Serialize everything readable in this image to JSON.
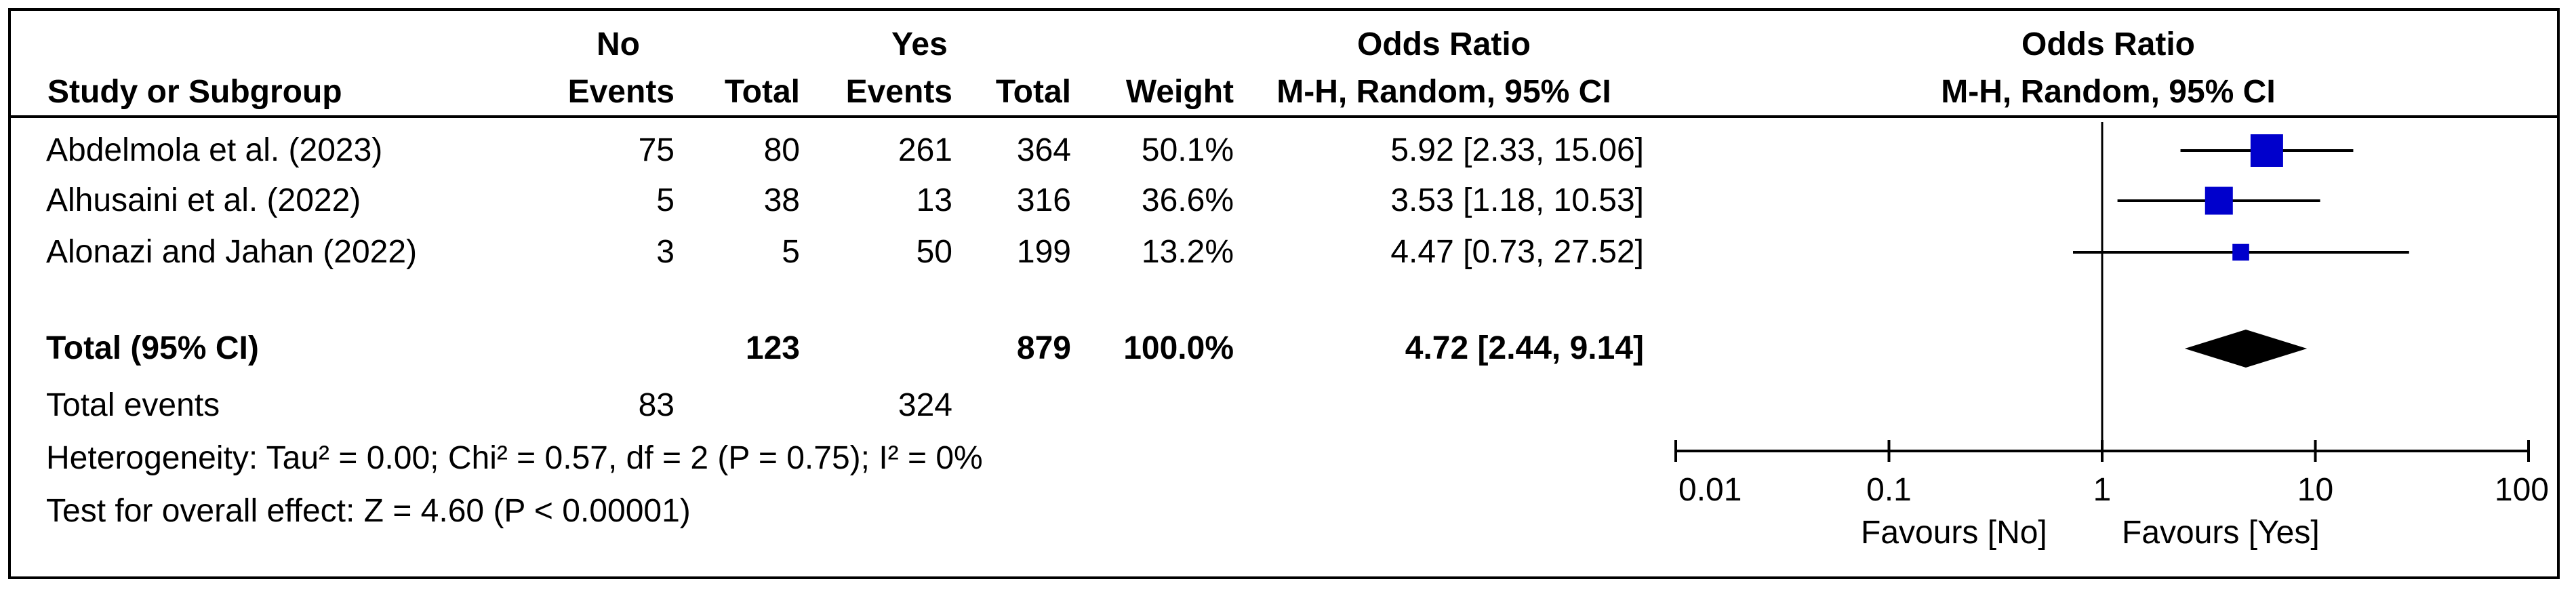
{
  "table": {
    "group_no": "No",
    "group_yes": "Yes",
    "or_header": "Odds Ratio",
    "or_method": "M-H, Random, 95% CI",
    "study_header": "Study or Subgroup",
    "events_label": "Events",
    "total_label": "Total",
    "weight_label": "Weight",
    "studies": [
      {
        "name": "Abdelmola et al. (2023)",
        "no_events": "75",
        "no_total": "80",
        "yes_events": "261",
        "yes_total": "364",
        "weight": "50.1%",
        "or_ci": "5.92 [2.33, 15.06]"
      },
      {
        "name": "Alhusaini et al. (2022)",
        "no_events": "5",
        "no_total": "38",
        "yes_events": "13",
        "yes_total": "316",
        "weight": "36.6%",
        "or_ci": "3.53 [1.18, 10.53]"
      },
      {
        "name": "Alonazi and Jahan (2022)",
        "no_events": "3",
        "no_total": "5",
        "yes_events": "50",
        "yes_total": "199",
        "weight": "13.2%",
        "or_ci": "4.47 [0.73, 27.52]"
      }
    ],
    "total": {
      "label": "Total (95% CI)",
      "no_total": "123",
      "yes_total": "879",
      "weight": "100.0%",
      "or_ci": "4.72 [2.44, 9.14]"
    },
    "total_events": {
      "label": "Total events",
      "no": "83",
      "yes": "324"
    },
    "heterogeneity": "Heterogeneity: Tau² = 0.00; Chi² = 0.57, df = 2 (P = 0.75); I² = 0%",
    "overall_effect": "Test for overall effect: Z = 4.60 (P < 0.00001)"
  },
  "plot": {
    "title": "Odds Ratio",
    "method": "M-H, Random, 95% CI",
    "favours_left": "Favours [No]",
    "favours_right": "Favours [Yes]"
  },
  "chart_data": {
    "type": "scatter",
    "x_scale": "log",
    "xlim": [
      0.01,
      100
    ],
    "x_ticks": [
      "0.01",
      "0.1",
      "1",
      "10",
      "100"
    ],
    "reference_line": 1,
    "colors": {
      "square": "#0000cc",
      "diamond": "#000000",
      "line": "#000000"
    },
    "studies": [
      {
        "name": "Abdelmola et al. (2023)",
        "or": 5.92,
        "lower": 2.33,
        "upper": 15.06,
        "weight": 50.1
      },
      {
        "name": "Alhusaini et al. (2022)",
        "or": 3.53,
        "lower": 1.18,
        "upper": 10.53,
        "weight": 36.6
      },
      {
        "name": "Alonazi and Jahan (2022)",
        "or": 4.47,
        "lower": 0.73,
        "upper": 27.52,
        "weight": 13.2
      }
    ],
    "pooled": {
      "or": 4.72,
      "lower": 2.44,
      "upper": 9.14
    }
  }
}
